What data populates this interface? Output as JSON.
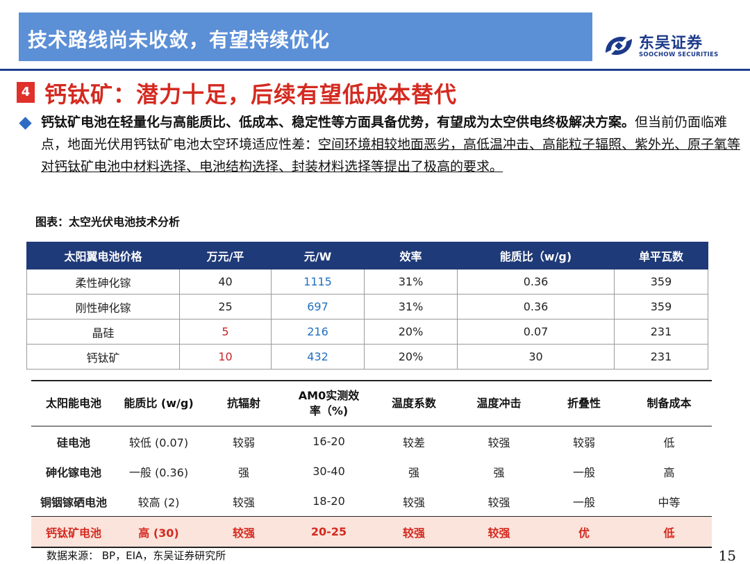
{
  "header": {
    "title": "技术路线尚未收敛，有望持续优化",
    "logo_cn": "东吴证券",
    "logo_en": "SOOCHOW SECURITIES",
    "brand_color": "#1b3a8a"
  },
  "section": {
    "number": "4",
    "title": "钙钛矿：潜力十足，后续有望低成本替代"
  },
  "paragraph": {
    "bold": "钙钛矿电池在轻量化与高能质比、低成本、稳定性等方面具备优势，有望成为太空供电终极解决方案。",
    "plain": "但当前仍面临难点，地面光伏用钙钛矿电池太空环境适应性差：",
    "underlined": "空间环境相较地面恶劣，高低温冲击、高能粒子辐照、紫外光、原子氧等对钙钛矿电池中材料选择、电池结构选择、封装材料选择等提出了极高的要求。"
  },
  "caption": "图表：太空光伏电池技术分析",
  "table1": {
    "headers": [
      "太阳翼电池价格",
      "万元/平",
      "元/W",
      "效率",
      "能质比（w/g)",
      "单平瓦数"
    ],
    "rows": [
      [
        "柔性砷化镓",
        "40",
        "1115",
        "31%",
        "0.36",
        "359"
      ],
      [
        "刚性砷化镓",
        "25",
        "697",
        "31%",
        "0.36",
        "359"
      ],
      [
        "晶硅",
        "5",
        "216",
        "20%",
        "0.07",
        "231"
      ],
      [
        "钙钛矿",
        "10",
        "432",
        "20%",
        "30",
        "231"
      ]
    ]
  },
  "table2": {
    "headers": [
      "太阳能电池",
      "能质比 (w/g)",
      "抗辐射",
      "AM0实测效率（%)",
      "温度系数",
      "温度冲击",
      "折叠性",
      "制备成本"
    ],
    "rows": [
      [
        "硅电池",
        "较低 (0.07)",
        "较弱",
        "16-20",
        "较差",
        "较强",
        "较弱",
        "低"
      ],
      [
        "砷化镓电池",
        "一般 (0.36)",
        "强",
        "30-40",
        "强",
        "强",
        "一般",
        "高"
      ],
      [
        "铜铟镓硒电池",
        "较高 (2)",
        "较强",
        "18-20",
        "较强",
        "较强",
        "一般",
        "中等"
      ],
      [
        "钙钛矿电池",
        "高 (30)",
        "较强",
        "20-25",
        "较强",
        "较强",
        "优",
        "低"
      ]
    ]
  },
  "footer": {
    "source": "数据来源： BP，EIA，东吴证券研究所",
    "page": "15"
  }
}
